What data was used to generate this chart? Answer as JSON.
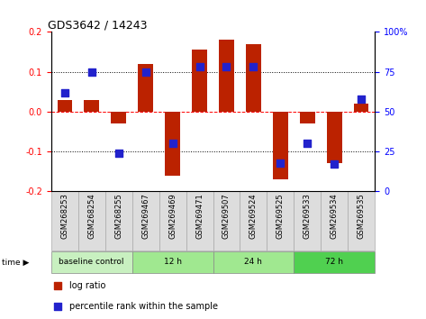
{
  "title": "GDS3642 / 14243",
  "samples": [
    "GSM268253",
    "GSM268254",
    "GSM268255",
    "GSM269467",
    "GSM269469",
    "GSM269471",
    "GSM269507",
    "GSM269524",
    "GSM269525",
    "GSM269533",
    "GSM269534",
    "GSM269535"
  ],
  "log_ratio": [
    0.03,
    0.03,
    -0.03,
    0.12,
    -0.16,
    0.155,
    0.18,
    0.17,
    -0.17,
    -0.03,
    -0.13,
    0.02
  ],
  "percentile_rank": [
    62,
    75,
    24,
    75,
    30,
    78,
    78,
    78,
    18,
    30,
    17,
    58
  ],
  "groups": [
    {
      "label": "baseline control",
      "start": 0,
      "end": 3,
      "color": "#c8f0c0"
    },
    {
      "label": "12 h",
      "start": 3,
      "end": 6,
      "color": "#a0e890"
    },
    {
      "label": "24 h",
      "start": 6,
      "end": 9,
      "color": "#a0e890"
    },
    {
      "label": "72 h",
      "start": 9,
      "end": 12,
      "color": "#50d050"
    }
  ],
  "bar_color": "#bb2200",
  "dot_color": "#2222cc",
  "ylim_left": [
    -0.2,
    0.2
  ],
  "ylim_right": [
    0,
    100
  ],
  "yticks_left": [
    -0.2,
    -0.1,
    0.0,
    0.1,
    0.2
  ],
  "yticks_right": [
    0,
    25,
    50,
    75,
    100
  ],
  "bar_width": 0.55,
  "dot_size": 28,
  "label_fontsize": 6,
  "tick_fontsize": 7,
  "title_fontsize": 9
}
